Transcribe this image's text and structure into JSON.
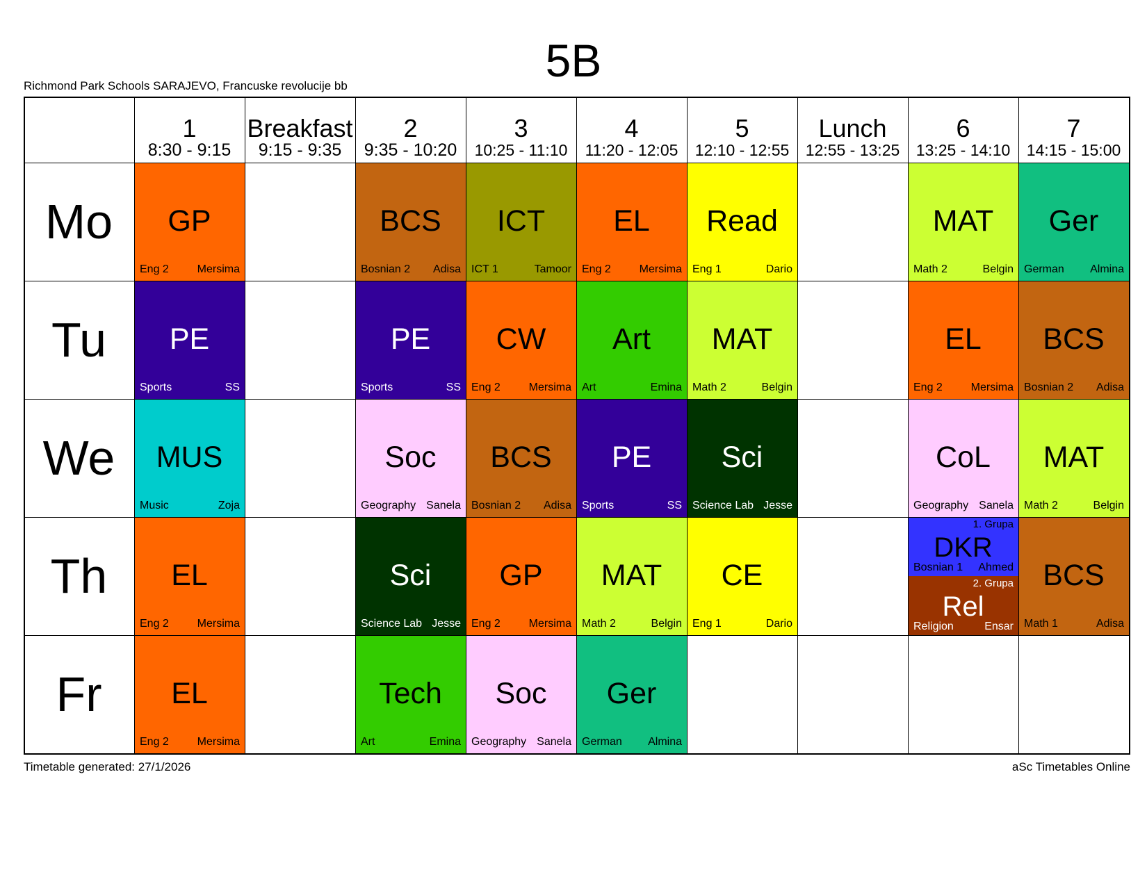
{
  "title": "5B",
  "school": "Richmond Park Schools SARAJEVO, Francuske revolucije bb",
  "footer": {
    "left": "Timetable generated: 27/1/2026",
    "right": "aSc Timetables Online"
  },
  "periods": [
    {
      "label": "1",
      "time": "8:30 - 9:15"
    },
    {
      "label": "Breakfast",
      "time": "9:15 - 9:35"
    },
    {
      "label": "2",
      "time": "9:35 - 10:20"
    },
    {
      "label": "3",
      "time": "10:25 - 11:10"
    },
    {
      "label": "4",
      "time": "11:20 - 12:05"
    },
    {
      "label": "5",
      "time": "12:10 - 12:55"
    },
    {
      "label": "Lunch",
      "time": "12:55 - 13:25"
    },
    {
      "label": "6",
      "time": "13:25 - 14:10"
    },
    {
      "label": "7",
      "time": "14:15 - 15:00"
    }
  ],
  "days": [
    "Mo",
    "Tu",
    "We",
    "Th",
    "Fr"
  ],
  "lessons": [
    {
      "day": 0,
      "col": 0,
      "subject": "GP",
      "room": "Eng 2",
      "teacher": "Mersima",
      "color": "#FF6600",
      "text": "#000000"
    },
    {
      "day": 0,
      "col": 2,
      "subject": "BCS",
      "room": "Bosnian 2",
      "teacher": "Adisa",
      "color": "#C26511",
      "text": "#000000"
    },
    {
      "day": 0,
      "col": 3,
      "subject": "ICT",
      "room": "ICT 1",
      "teacher": "Tamoor",
      "color": "#999900",
      "text": "#000000"
    },
    {
      "day": 0,
      "col": 4,
      "subject": "EL",
      "room": "Eng 2",
      "teacher": "Mersima",
      "color": "#FF6600",
      "text": "#000000"
    },
    {
      "day": 0,
      "col": 5,
      "subject": "Read",
      "room": "Eng 1",
      "teacher": "Dario",
      "color": "#FFFF00",
      "text": "#000000"
    },
    {
      "day": 0,
      "col": 7,
      "subject": "MAT",
      "room": "Math 2",
      "teacher": "Belgin",
      "color": "#CCFF33",
      "text": "#000000"
    },
    {
      "day": 0,
      "col": 8,
      "subject": "Ger",
      "room": "German",
      "teacher": "Almina",
      "color": "#11BF80",
      "text": "#000000"
    },
    {
      "day": 1,
      "col": 0,
      "subject": "PE",
      "room": "Sports",
      "teacher": "SS",
      "color": "#330099",
      "text": "#FFFFFF"
    },
    {
      "day": 1,
      "col": 2,
      "subject": "PE",
      "room": "Sports",
      "teacher": "SS",
      "color": "#330099",
      "text": "#FFFFFF"
    },
    {
      "day": 1,
      "col": 3,
      "subject": "CW",
      "room": "Eng 2",
      "teacher": "Mersima",
      "color": "#FF6600",
      "text": "#000000"
    },
    {
      "day": 1,
      "col": 4,
      "subject": "Art",
      "room": "Art",
      "teacher": "Emina",
      "color": "#33CC00",
      "text": "#000000"
    },
    {
      "day": 1,
      "col": 5,
      "subject": "MAT",
      "room": "Math 2",
      "teacher": "Belgin",
      "color": "#CCFF33",
      "text": "#000000"
    },
    {
      "day": 1,
      "col": 7,
      "subject": "EL",
      "room": "Eng 2",
      "teacher": "Mersima",
      "color": "#FF6600",
      "text": "#000000"
    },
    {
      "day": 1,
      "col": 8,
      "subject": "BCS",
      "room": "Bosnian 2",
      "teacher": "Adisa",
      "color": "#C26511",
      "text": "#000000"
    },
    {
      "day": 2,
      "col": 0,
      "subject": "MUS",
      "room": "Music",
      "teacher": "Zoja",
      "color": "#00CCCC",
      "text": "#000000"
    },
    {
      "day": 2,
      "col": 2,
      "subject": "Soc",
      "room": "Geography",
      "teacher": "Sanela",
      "color": "#FFCCFF",
      "text": "#000000"
    },
    {
      "day": 2,
      "col": 3,
      "subject": "BCS",
      "room": "Bosnian 2",
      "teacher": "Adisa",
      "color": "#C26511",
      "text": "#000000"
    },
    {
      "day": 2,
      "col": 4,
      "subject": "PE",
      "room": "Sports",
      "teacher": "SS",
      "color": "#330099",
      "text": "#FFFFFF"
    },
    {
      "day": 2,
      "col": 5,
      "subject": "Sci",
      "room": "Science Lab",
      "teacher": "Jesse",
      "color": "#003300",
      "text": "#FFFFFF"
    },
    {
      "day": 2,
      "col": 7,
      "subject": "CoL",
      "room": "Geography",
      "teacher": "Sanela",
      "color": "#FFCCFF",
      "text": "#000000"
    },
    {
      "day": 2,
      "col": 8,
      "subject": "MAT",
      "room": "Math 2",
      "teacher": "Belgin",
      "color": "#CCFF33",
      "text": "#000000"
    },
    {
      "day": 3,
      "col": 0,
      "subject": "EL",
      "room": "Eng 2",
      "teacher": "Mersima",
      "color": "#FF6600",
      "text": "#000000"
    },
    {
      "day": 3,
      "col": 2,
      "subject": "Sci",
      "room": "Science Lab",
      "teacher": "Jesse",
      "color": "#003300",
      "text": "#FFFFFF"
    },
    {
      "day": 3,
      "col": 3,
      "subject": "GP",
      "room": "Eng 2",
      "teacher": "Mersima",
      "color": "#FF6600",
      "text": "#000000"
    },
    {
      "day": 3,
      "col": 4,
      "subject": "MAT",
      "room": "Math 2",
      "teacher": "Belgin",
      "color": "#CCFF33",
      "text": "#000000"
    },
    {
      "day": 3,
      "col": 5,
      "subject": "CE",
      "room": "Eng 1",
      "teacher": "Dario",
      "color": "#FFFF00",
      "text": "#000000"
    },
    {
      "day": 3,
      "col": 7,
      "half": "top",
      "group": "1. Grupa",
      "subject": "DKR",
      "room": "Bosnian 1",
      "teacher": "Ahmed",
      "color": "#3333FF",
      "text": "#000000"
    },
    {
      "day": 3,
      "col": 7,
      "half": "bottom",
      "group": "2. Grupa",
      "subject": "Rel",
      "room": "Religion",
      "teacher": "Ensar",
      "color": "#993300",
      "text": "#FFFFFF"
    },
    {
      "day": 3,
      "col": 8,
      "subject": "BCS",
      "room": "Math 1",
      "teacher": "Adisa",
      "color": "#C26511",
      "text": "#000000"
    },
    {
      "day": 4,
      "col": 0,
      "subject": "EL",
      "room": "Eng 2",
      "teacher": "Mersima",
      "color": "#FF6600",
      "text": "#000000"
    },
    {
      "day": 4,
      "col": 2,
      "subject": "Tech",
      "room": "Art",
      "teacher": "Emina",
      "color": "#33CC00",
      "text": "#000000"
    },
    {
      "day": 4,
      "col": 3,
      "subject": "Soc",
      "room": "Geography",
      "teacher": "Sanela",
      "color": "#FFCCFF",
      "text": "#000000"
    },
    {
      "day": 4,
      "col": 4,
      "subject": "Ger",
      "room": "German",
      "teacher": "Almina",
      "color": "#11BF80",
      "text": "#000000"
    }
  ]
}
